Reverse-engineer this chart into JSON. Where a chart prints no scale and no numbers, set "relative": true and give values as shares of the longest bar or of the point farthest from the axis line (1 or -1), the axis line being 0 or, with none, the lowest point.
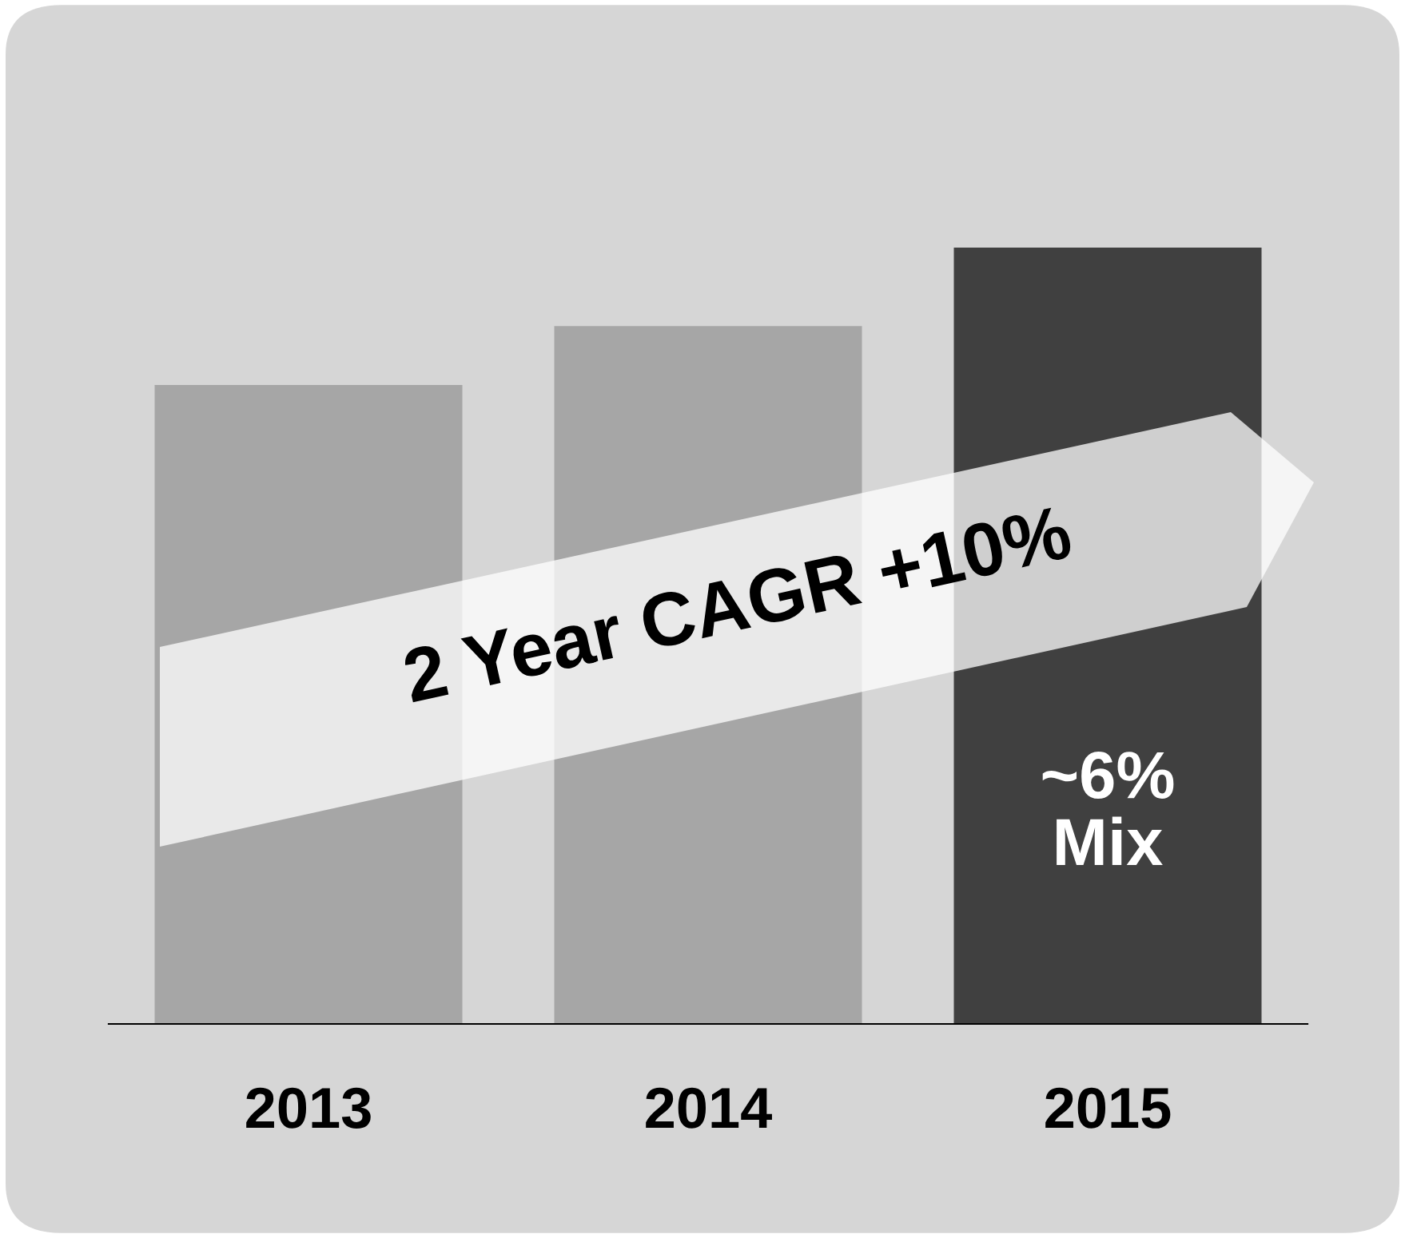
{
  "chart_data": {
    "type": "bar",
    "relative": true,
    "categories": [
      "2013",
      "2014",
      "2015"
    ],
    "values": [
      0.823,
      0.899,
      1
    ],
    "colors": [
      "#a6a6a6",
      "#a6a6a6",
      "#404040"
    ],
    "annotations": [
      "2 Year CAGR +10%",
      "~6%\nMix"
    ],
    "grid": false,
    "legend": false
  }
}
